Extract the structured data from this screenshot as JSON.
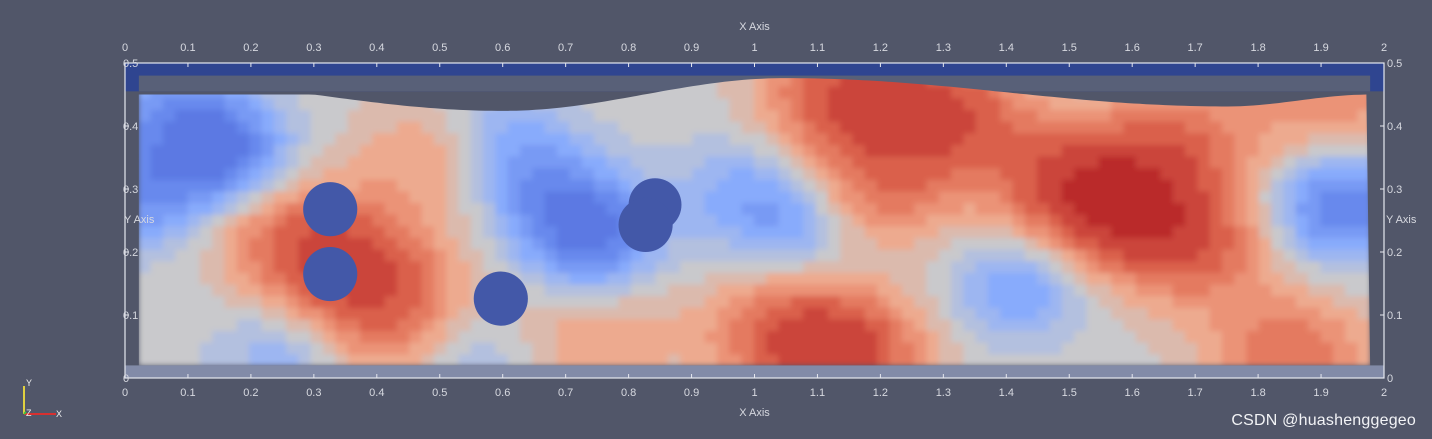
{
  "chart_data": {
    "type": "heatmap",
    "x_axis_title": "X Axis",
    "y_axis_title": "Y Axis",
    "xlim": [
      0,
      2
    ],
    "ylim": [
      0,
      0.5
    ],
    "x_ticks": [
      "0",
      "0.1",
      "0.2",
      "0.3",
      "0.4",
      "0.5",
      "0.6",
      "0.7",
      "0.8",
      "0.9",
      "1",
      "1.1",
      "1.2",
      "1.3",
      "1.4",
      "1.5",
      "1.6",
      "1.7",
      "1.8",
      "1.9",
      "2"
    ],
    "y_ticks": [
      "0",
      "0.1",
      "0.2",
      "0.3",
      "0.4",
      "0.5"
    ],
    "colormap": "cool-to-warm",
    "colors": {
      "background": "#515669",
      "low": "#3b4cc0",
      "mid": "#c9c9cc",
      "high": "#b40426",
      "peak": "#8b0020",
      "obstacle": "#4358a8",
      "top_band": "#2f4590"
    },
    "obstacles": [
      {
        "x": 0.326,
        "y": 0.268,
        "r": 0.043
      },
      {
        "x": 0.326,
        "y": 0.165,
        "r": 0.043
      },
      {
        "x": 0.597,
        "y": 0.126,
        "r": 0.043
      },
      {
        "x": 0.842,
        "y": 0.275,
        "r": 0.042
      },
      {
        "x": 0.827,
        "y": 0.243,
        "r": 0.043
      }
    ],
    "hot_spots": [
      {
        "x": 1.6,
        "y": 0.27,
        "v": 1.0
      },
      {
        "x": 1.5,
        "y": 0.32,
        "v": 0.7
      },
      {
        "x": 1.3,
        "y": 0.42,
        "v": 0.8
      },
      {
        "x": 1.15,
        "y": 0.45,
        "v": 0.8
      },
      {
        "x": 1.2,
        "y": 0.3,
        "v": 0.55
      },
      {
        "x": 1.14,
        "y": 0.04,
        "v": 0.85
      },
      {
        "x": 1.05,
        "y": 0.08,
        "v": 0.5
      },
      {
        "x": 1.85,
        "y": 0.04,
        "v": 0.6
      },
      {
        "x": 1.92,
        "y": 0.44,
        "v": 0.4
      },
      {
        "x": 0.37,
        "y": 0.17,
        "v": 0.8
      },
      {
        "x": 0.27,
        "y": 0.23,
        "v": 0.5
      },
      {
        "x": 0.5,
        "y": 0.35,
        "v": 0.35
      },
      {
        "x": 0.43,
        "y": 0.08,
        "v": 0.4
      },
      {
        "x": 0.75,
        "y": 0.06,
        "v": 0.3
      },
      {
        "x": 1.7,
        "y": 0.2,
        "v": 0.55
      },
      {
        "x": 1.68,
        "y": 0.38,
        "v": 0.5
      }
    ],
    "cold_spots": [
      {
        "x": 0.15,
        "y": 0.36,
        "v": 0.9
      },
      {
        "x": 0.03,
        "y": 0.29,
        "v": 0.6
      },
      {
        "x": 0.08,
        "y": 0.42,
        "v": 0.5
      },
      {
        "x": 0.74,
        "y": 0.23,
        "v": 0.9
      },
      {
        "x": 0.67,
        "y": 0.3,
        "v": 0.5
      },
      {
        "x": 0.6,
        "y": 0.38,
        "v": 0.4
      },
      {
        "x": 1.06,
        "y": 0.25,
        "v": 0.45
      },
      {
        "x": 0.97,
        "y": 0.3,
        "v": 0.3
      },
      {
        "x": 1.93,
        "y": 0.27,
        "v": 0.8
      },
      {
        "x": 1.42,
        "y": 0.14,
        "v": 0.45
      },
      {
        "x": 0.25,
        "y": 0.04,
        "v": 0.3
      },
      {
        "x": 0.55,
        "y": 0.04,
        "v": 0.25
      }
    ]
  },
  "orientation": {
    "x_label": "X",
    "y_label": "Y",
    "z_label": "Z",
    "x_color": "#d83030",
    "y_color": "#e0d040",
    "z_color": "#40c040"
  },
  "watermark": "CSDN @huashenggegeo"
}
